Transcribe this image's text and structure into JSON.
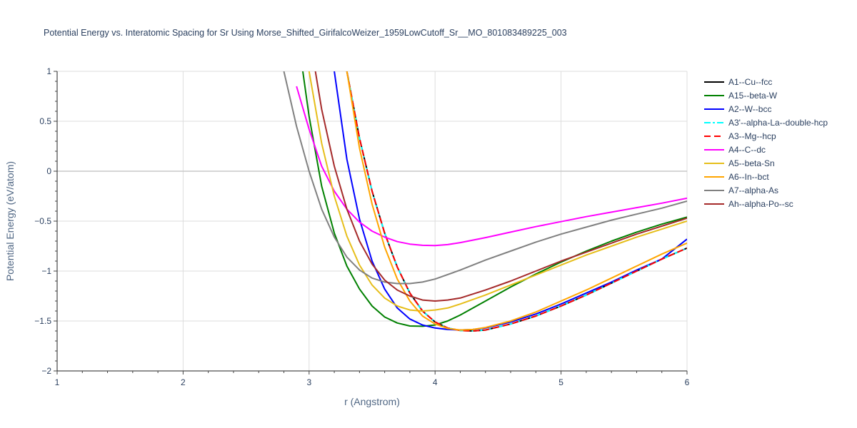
{
  "chart_data": {
    "type": "line",
    "title": "Potential Energy vs. Interatomic Spacing for Sr Using Morse_Shifted_GirifalcoWeizer_1959LowCutoff_Sr__MO_801083489225_003",
    "xlabel": "r (Angstrom)",
    "ylabel": "Potential Energy (eV/atom)",
    "xlim": [
      1,
      6
    ],
    "ylim": [
      -2,
      1
    ],
    "xticks": [
      1,
      2,
      3,
      4,
      5,
      6
    ],
    "yticks": [
      -2,
      -1.5,
      -1,
      -0.5,
      0,
      0.5,
      1
    ],
    "ytick_labels": [
      "−2",
      "−1.5",
      "−1",
      "−0.5",
      "0",
      "0.5",
      "1"
    ],
    "grid": true,
    "legend_position": "right",
    "series": [
      {
        "name": "A1--Cu--fcc",
        "color": "#000000",
        "dash": "solid",
        "x": [
          3.3,
          3.4,
          3.5,
          3.6,
          3.7,
          3.8,
          3.9,
          4.0,
          4.1,
          4.2,
          4.3,
          4.4,
          4.6,
          4.8,
          5.0,
          5.2,
          5.4,
          5.6,
          5.8,
          6.0
        ],
        "y": [
          1.0,
          0.33,
          -0.2,
          -0.62,
          -0.96,
          -1.22,
          -1.4,
          -1.51,
          -1.57,
          -1.595,
          -1.6,
          -1.59,
          -1.53,
          -1.45,
          -1.35,
          -1.24,
          -1.12,
          -1.0,
          -0.88,
          -0.77
        ]
      },
      {
        "name": "A15--beta-W",
        "color": "#008000",
        "dash": "solid",
        "x": [
          2.95,
          3.0,
          3.1,
          3.2,
          3.3,
          3.4,
          3.5,
          3.6,
          3.7,
          3.8,
          3.9,
          4.0,
          4.1,
          4.2,
          4.4,
          4.6,
          4.8,
          5.0,
          5.2,
          5.4,
          5.6,
          5.8,
          6.0
        ],
        "y": [
          1.0,
          0.55,
          -0.15,
          -0.62,
          -0.95,
          -1.18,
          -1.35,
          -1.46,
          -1.52,
          -1.55,
          -1.553,
          -1.54,
          -1.5,
          -1.44,
          -1.3,
          -1.16,
          -1.03,
          -0.91,
          -0.8,
          -0.7,
          -0.61,
          -0.53,
          -0.46
        ]
      },
      {
        "name": "A2--W--bcc",
        "color": "#0000ff",
        "dash": "solid",
        "x": [
          3.2,
          3.3,
          3.4,
          3.5,
          3.6,
          3.7,
          3.8,
          3.9,
          4.0,
          4.1,
          4.2,
          4.3,
          4.4,
          4.6,
          4.8,
          5.0,
          5.2,
          5.4,
          5.6,
          5.8,
          6.0
        ],
        "y": [
          1.0,
          0.12,
          -0.48,
          -0.9,
          -1.18,
          -1.37,
          -1.48,
          -1.54,
          -1.57,
          -1.585,
          -1.59,
          -1.585,
          -1.57,
          -1.51,
          -1.43,
          -1.33,
          -1.22,
          -1.11,
          -0.99,
          -0.88,
          -0.68
        ]
      },
      {
        "name": "A3'--alpha-La--double-hcp",
        "color": "#00ffff",
        "dash": "dashdot",
        "x": [
          3.3,
          3.4,
          3.5,
          3.6,
          3.7,
          3.8,
          3.9,
          4.0,
          4.1,
          4.2,
          4.3,
          4.4,
          4.6,
          4.8,
          5.0,
          5.2,
          5.4,
          5.6,
          5.8,
          6.0
        ],
        "y": [
          1.0,
          0.33,
          -0.2,
          -0.62,
          -0.96,
          -1.22,
          -1.4,
          -1.51,
          -1.57,
          -1.595,
          -1.6,
          -1.59,
          -1.53,
          -1.45,
          -1.35,
          -1.24,
          -1.12,
          -1.0,
          -0.88,
          -0.77
        ]
      },
      {
        "name": "A3--Mg--hcp",
        "color": "#ff0000",
        "dash": "dash",
        "x": [
          3.3,
          3.4,
          3.5,
          3.6,
          3.7,
          3.8,
          3.9,
          4.0,
          4.1,
          4.2,
          4.3,
          4.4,
          4.6,
          4.8,
          5.0,
          5.2,
          5.4,
          5.6,
          5.8,
          6.0
        ],
        "y": [
          1.0,
          0.33,
          -0.2,
          -0.62,
          -0.96,
          -1.22,
          -1.4,
          -1.51,
          -1.57,
          -1.595,
          -1.6,
          -1.59,
          -1.53,
          -1.45,
          -1.35,
          -1.24,
          -1.12,
          -1.0,
          -0.88,
          -0.77
        ]
      },
      {
        "name": "A4--C--dc",
        "color": "#ff00ff",
        "dash": "solid",
        "x": [
          2.9,
          3.0,
          3.1,
          3.2,
          3.3,
          3.4,
          3.5,
          3.6,
          3.7,
          3.8,
          3.9,
          4.0,
          4.1,
          4.2,
          4.4,
          4.6,
          4.8,
          5.0,
          5.2,
          5.4,
          5.6,
          5.8,
          6.0
        ],
        "y": [
          0.85,
          0.42,
          0.05,
          -0.2,
          -0.38,
          -0.51,
          -0.6,
          -0.66,
          -0.705,
          -0.73,
          -0.742,
          -0.745,
          -0.735,
          -0.715,
          -0.665,
          -0.61,
          -0.555,
          -0.505,
          -0.455,
          -0.41,
          -0.365,
          -0.32,
          -0.27
        ]
      },
      {
        "name": "A5--beta-Sn",
        "color": "#e6be1a",
        "dash": "solid",
        "x": [
          3.0,
          3.1,
          3.2,
          3.3,
          3.4,
          3.5,
          3.6,
          3.7,
          3.8,
          3.9,
          4.0,
          4.1,
          4.2,
          4.4,
          4.6,
          4.8,
          5.0,
          5.2,
          5.4,
          5.6,
          5.8,
          6.0
        ],
        "y": [
          1.0,
          0.28,
          -0.25,
          -0.65,
          -0.94,
          -1.14,
          -1.27,
          -1.35,
          -1.39,
          -1.4,
          -1.39,
          -1.37,
          -1.33,
          -1.24,
          -1.14,
          -1.04,
          -0.94,
          -0.84,
          -0.75,
          -0.66,
          -0.58,
          -0.5
        ]
      },
      {
        "name": "A6--In--bct",
        "color": "#ffa500",
        "dash": "solid",
        "x": [
          3.3,
          3.4,
          3.5,
          3.6,
          3.7,
          3.8,
          3.9,
          4.0,
          4.1,
          4.2,
          4.3,
          4.4,
          4.6,
          4.8,
          5.0,
          5.2,
          5.4,
          5.6,
          5.8,
          6.0
        ],
        "y": [
          1.0,
          0.23,
          -0.33,
          -0.76,
          -1.08,
          -1.3,
          -1.45,
          -1.53,
          -1.575,
          -1.59,
          -1.585,
          -1.565,
          -1.5,
          -1.41,
          -1.3,
          -1.19,
          -1.07,
          -0.95,
          -0.83,
          -0.72
        ]
      },
      {
        "name": "A7--alpha-As",
        "color": "#808080",
        "dash": "solid",
        "x": [
          2.8,
          2.9,
          3.0,
          3.1,
          3.2,
          3.3,
          3.4,
          3.5,
          3.6,
          3.7,
          3.8,
          3.9,
          4.0,
          4.2,
          4.4,
          4.6,
          4.8,
          5.0,
          5.2,
          5.4,
          5.6,
          5.8,
          6.0
        ],
        "y": [
          1.0,
          0.45,
          0.0,
          -0.38,
          -0.66,
          -0.86,
          -0.99,
          -1.07,
          -1.11,
          -1.125,
          -1.125,
          -1.11,
          -1.08,
          -0.99,
          -0.89,
          -0.8,
          -0.71,
          -0.63,
          -0.56,
          -0.49,
          -0.43,
          -0.37,
          -0.3
        ]
      },
      {
        "name": "Ah--alpha-Po--sc",
        "color": "#a52a2a",
        "dash": "solid",
        "x": [
          3.05,
          3.1,
          3.2,
          3.3,
          3.4,
          3.5,
          3.6,
          3.7,
          3.8,
          3.9,
          4.0,
          4.1,
          4.2,
          4.4,
          4.6,
          4.8,
          5.0,
          5.2,
          5.4,
          5.6,
          5.8,
          6.0
        ],
        "y": [
          1.0,
          0.62,
          0.05,
          -0.38,
          -0.7,
          -0.93,
          -1.09,
          -1.19,
          -1.25,
          -1.29,
          -1.3,
          -1.29,
          -1.27,
          -1.19,
          -1.1,
          -1.0,
          -0.9,
          -0.81,
          -0.72,
          -0.63,
          -0.55,
          -0.47
        ]
      }
    ]
  }
}
